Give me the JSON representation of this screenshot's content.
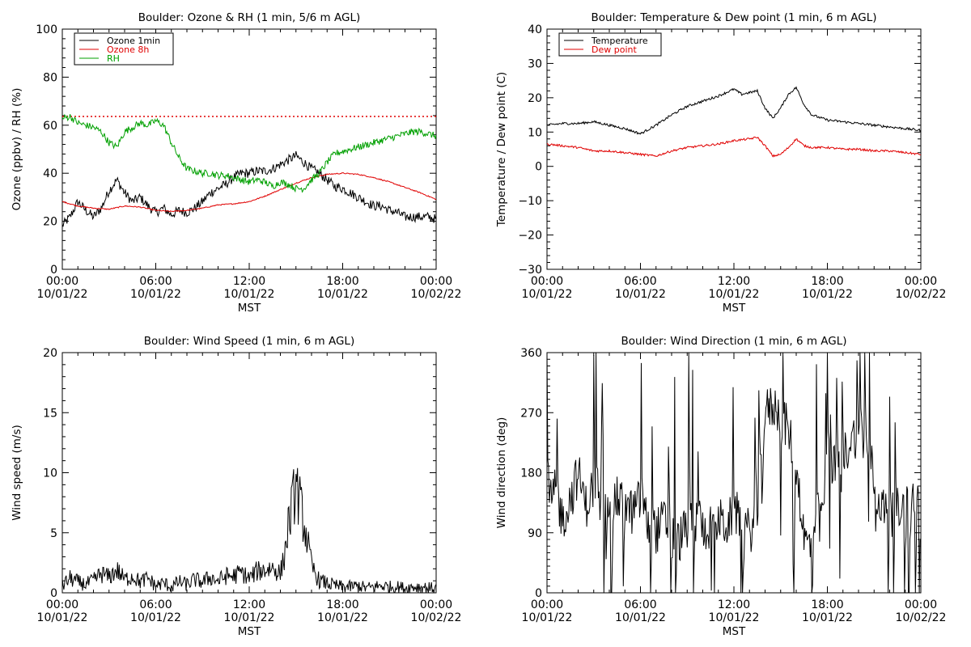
{
  "chart_data": [
    {
      "type": "line",
      "title": "Boulder: Ozone & RH (1 min, 5/6 m AGL)",
      "xlabel": "MST",
      "ylabel": "Ozone (ppbv) / RH (%)",
      "xlim": [
        "10/01/22 00:00",
        "10/02/22 00:00"
      ],
      "x_ticks": [
        {
          "time": "00:00",
          "date": "10/01/22"
        },
        {
          "time": "06:00",
          "date": "10/01/22"
        },
        {
          "time": "12:00",
          "date": "10/01/22"
        },
        {
          "time": "18:00",
          "date": "10/01/22"
        },
        {
          "time": "00:00",
          "date": "10/02/22"
        }
      ],
      "ylim": [
        0,
        110
      ],
      "y_ticks": [
        "0",
        "20",
        "40",
        "60",
        "80",
        "100"
      ],
      "reference_line": {
        "value": 70,
        "color": "#e00000",
        "style": "dotted"
      },
      "legend_position": "top-left",
      "series": [
        {
          "name": "Ozone 1min",
          "color": "#000000",
          "hours": [
            0,
            0.5,
            1,
            1.5,
            2,
            2.5,
            3,
            3.5,
            4,
            4.5,
            5,
            5.5,
            6,
            6.5,
            7,
            7.5,
            8,
            8.5,
            9,
            9.5,
            10,
            10.5,
            11,
            11.5,
            12,
            12.5,
            13,
            13.5,
            14,
            14.5,
            15,
            15.5,
            16,
            16.5,
            17,
            17.5,
            18,
            18.5,
            19,
            19.5,
            20,
            20.5,
            21,
            21.5,
            22,
            22.5,
            23,
            23.5,
            24
          ],
          "values": [
            20,
            24,
            31,
            27,
            24,
            28,
            36,
            41,
            35,
            31,
            33,
            29,
            26,
            28,
            25,
            27,
            26,
            28,
            31,
            35,
            37,
            39,
            42,
            44,
            44,
            45,
            45,
            46,
            48,
            50,
            52,
            49,
            46,
            44,
            41,
            38,
            37,
            35,
            33,
            31,
            29,
            29,
            27,
            26,
            24,
            24,
            24,
            24,
            23
          ]
        },
        {
          "name": "Ozone 8h",
          "color": "#e00000",
          "hours": [
            0,
            1,
            2,
            3,
            4,
            5,
            6,
            7,
            8,
            9,
            10,
            11,
            12,
            13,
            14,
            15,
            16,
            17,
            18,
            19,
            20,
            21,
            22,
            23,
            24
          ],
          "values": [
            31,
            29,
            28,
            27.5,
            29,
            28.5,
            27,
            26.5,
            27,
            28,
            29.5,
            30,
            31,
            33.5,
            36.5,
            39.5,
            42,
            43.5,
            44,
            43.5,
            42,
            40,
            37.5,
            35,
            32
          ]
        },
        {
          "name": "RH",
          "color": "#00a000",
          "hours": [
            0,
            0.5,
            1,
            1.5,
            2,
            2.5,
            3,
            3.5,
            4,
            4.5,
            5,
            5.5,
            6,
            6.5,
            7,
            7.5,
            8,
            8.5,
            9,
            9.5,
            10,
            10.5,
            11,
            11.5,
            12,
            12.5,
            13,
            13.5,
            14,
            14.5,
            15,
            15.5,
            16,
            16.5,
            17,
            17.5,
            18,
            18.5,
            19,
            19.5,
            20,
            20.5,
            21,
            21.5,
            22,
            22.5,
            23,
            23.5,
            24
          ],
          "values": [
            69,
            70,
            67,
            66,
            65,
            63,
            58,
            56,
            63,
            65,
            67,
            66,
            68,
            66,
            58,
            51,
            46,
            45,
            44,
            44,
            43,
            43,
            42,
            41,
            40,
            41,
            40,
            38,
            40,
            39,
            37,
            37,
            41,
            44,
            49,
            53,
            54,
            55,
            56,
            57,
            58,
            59,
            60,
            61,
            62,
            63,
            63,
            62,
            61
          ]
        }
      ]
    },
    {
      "type": "line",
      "title": "Boulder: Temperature & Dew point (1 min, 6 m AGL)",
      "xlabel": "MST",
      "ylabel": "Temperature / Dew point (C)",
      "xlim": [
        "10/01/22 00:00",
        "10/02/22 00:00"
      ],
      "x_ticks": [
        {
          "time": "00:00",
          "date": "10/01/22"
        },
        {
          "time": "06:00",
          "date": "10/01/22"
        },
        {
          "time": "12:00",
          "date": "10/01/22"
        },
        {
          "time": "18:00",
          "date": "10/01/22"
        },
        {
          "time": "00:00",
          "date": "10/02/22"
        }
      ],
      "ylim": [
        -30,
        40
      ],
      "y_ticks": [
        "−30",
        "−20",
        "−10",
        "0",
        "10",
        "20",
        "30",
        "40"
      ],
      "legend_position": "top-left",
      "series": [
        {
          "name": "Temperature",
          "color": "#000000",
          "hours": [
            0,
            1,
            2,
            3,
            4,
            5,
            6,
            7,
            8,
            9,
            10,
            11,
            12,
            12.5,
            13,
            13.5,
            14,
            14.5,
            15,
            15.5,
            16,
            16.5,
            17,
            18,
            19,
            20,
            21,
            22,
            23,
            24
          ],
          "values": [
            12,
            12.5,
            12.5,
            13,
            12,
            11,
            9.5,
            12,
            15,
            17.5,
            19,
            20.5,
            22.5,
            21,
            21.5,
            22,
            17,
            14,
            17,
            21,
            23,
            18,
            15,
            13.5,
            13,
            12.5,
            12,
            11.5,
            11,
            10.5
          ]
        },
        {
          "name": "Dew point",
          "color": "#e00000",
          "hours": [
            0,
            1,
            2,
            3,
            4,
            5,
            6,
            7,
            8,
            9,
            10,
            11,
            12,
            13,
            13.5,
            14,
            14.5,
            15,
            15.5,
            16,
            16.5,
            17,
            18,
            19,
            20,
            21,
            22,
            23,
            24
          ],
          "values": [
            6.5,
            6,
            5.5,
            4.5,
            4.5,
            4,
            3.5,
            3,
            4.5,
            5.5,
            6,
            6.5,
            7.5,
            8,
            8.5,
            6,
            3,
            3.5,
            5.5,
            8,
            6,
            5.5,
            5.5,
            5,
            5,
            4.5,
            4.5,
            4,
            3.5
          ]
        }
      ]
    },
    {
      "type": "line",
      "title": "Boulder: Wind Speed (1 min, 6 m AGL)",
      "xlabel": "MST",
      "ylabel": "Wind speed (m/s)",
      "xlim": [
        "10/01/22 00:00",
        "10/02/22 00:00"
      ],
      "x_ticks": [
        {
          "time": "00:00",
          "date": "10/01/22"
        },
        {
          "time": "06:00",
          "date": "10/01/22"
        },
        {
          "time": "12:00",
          "date": "10/01/22"
        },
        {
          "time": "18:00",
          "date": "10/01/22"
        },
        {
          "time": "00:00",
          "date": "10/02/22"
        }
      ],
      "ylim": [
        0,
        20
      ],
      "y_ticks": [
        "0",
        "5",
        "10",
        "15",
        "20"
      ],
      "series": [
        {
          "color": "#000000",
          "hours": [
            0,
            0.5,
            1,
            1.5,
            2,
            2.5,
            3,
            3.5,
            4,
            4.5,
            5,
            5.5,
            6,
            6.5,
            7,
            7.5,
            8,
            8.5,
            9,
            9.5,
            10,
            10.5,
            11,
            11.5,
            12,
            12.5,
            13,
            13.5,
            14,
            14.25,
            14.5,
            14.75,
            15,
            15.25,
            15.5,
            15.75,
            16,
            16.5,
            17,
            17.5,
            18,
            18.5,
            19,
            19.5,
            20,
            20.5,
            21,
            21.5,
            22,
            22.5,
            23,
            23.5,
            24
          ],
          "values": [
            0.6,
            1.2,
            0.9,
            0.7,
            1.0,
            1.6,
            1.3,
            1.9,
            1.1,
            1.4,
            0.9,
            1.2,
            0.6,
            0.8,
            0.5,
            0.9,
            0.7,
            1.1,
            0.9,
            1.3,
            1.0,
            1.4,
            1.4,
            1.7,
            1.2,
            1.8,
            1.9,
            2.1,
            1.6,
            3.0,
            5.5,
            7.2,
            9.0,
            7.5,
            5.8,
            4.2,
            2.2,
            1.0,
            0.8,
            0.6,
            0.5,
            0.5,
            0.6,
            0.4,
            0.5,
            0.6,
            0.5,
            0.5,
            0.4,
            0.5,
            0.5,
            0.4,
            0.4
          ]
        }
      ]
    },
    {
      "type": "line",
      "title": "Boulder: Wind Direction (1 min, 6 m AGL)",
      "xlabel": "MST",
      "ylabel": "Wind direction (deg)",
      "xlim": [
        "10/01/22 00:00",
        "10/02/22 00:00"
      ],
      "x_ticks": [
        {
          "time": "00:00",
          "date": "10/01/22"
        },
        {
          "time": "06:00",
          "date": "10/01/22"
        },
        {
          "time": "12:00",
          "date": "10/01/22"
        },
        {
          "time": "18:00",
          "date": "10/01/22"
        },
        {
          "time": "00:00",
          "date": "10/02/22"
        }
      ],
      "ylim": [
        0,
        360
      ],
      "y_ticks": [
        "0",
        "90",
        "180",
        "270",
        "360"
      ],
      "series": [
        {
          "color": "#000000",
          "hours": [
            0,
            0.5,
            1,
            1.5,
            2,
            2.5,
            3,
            3.5,
            4,
            4.5,
            5,
            5.5,
            6,
            6.5,
            7,
            7.5,
            8,
            8.5,
            9,
            9.5,
            10,
            10.5,
            11,
            11.5,
            12,
            12.5,
            13,
            13.5,
            14,
            14.5,
            15,
            15.5,
            16,
            16.5,
            17,
            17.5,
            18,
            18.5,
            19,
            19.5,
            20,
            20.5,
            21,
            21.5,
            22,
            22.5,
            23,
            23.5,
            24
          ],
          "values": [
            130,
            150,
            110,
            140,
            180,
            130,
            160,
            120,
            150,
            140,
            130,
            120,
            140,
            100,
            90,
            110,
            90,
            80,
            100,
            110,
            95,
            100,
            110,
            100,
            120,
            110,
            90,
            120,
            270,
            280,
            270,
            240,
            200,
            80,
            70,
            100,
            180,
            190,
            200,
            230,
            240,
            220,
            170,
            130,
            110,
            120,
            130,
            140,
            130
          ]
        }
      ]
    }
  ]
}
